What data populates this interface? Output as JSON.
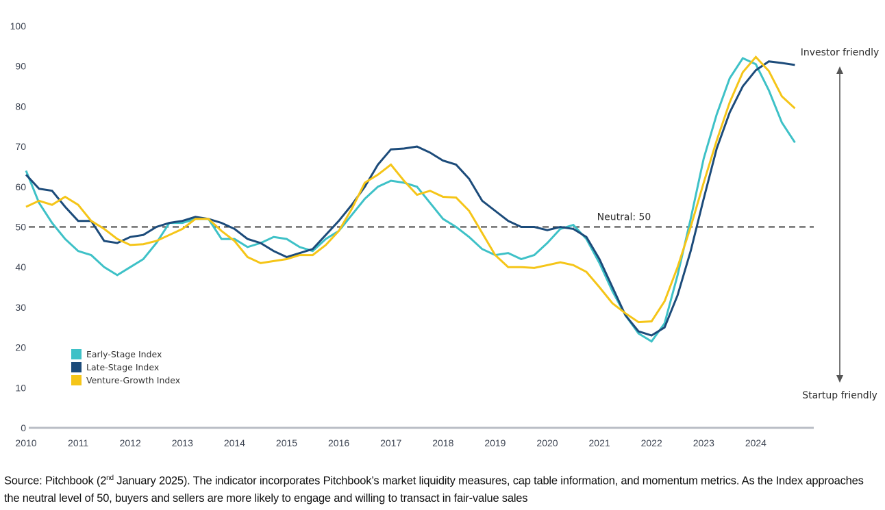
{
  "chart_data": {
    "type": "line",
    "title": "",
    "xlabel": "",
    "ylabel": "",
    "ylim": [
      0,
      100
    ],
    "yticks": [
      0,
      10,
      20,
      30,
      40,
      50,
      60,
      70,
      80,
      90,
      100
    ],
    "xlim": [
      2010,
      2025
    ],
    "xticks": [
      2010,
      2011,
      2012,
      2013,
      2014,
      2015,
      2016,
      2017,
      2018,
      2019,
      2020,
      2021,
      2022,
      2023,
      2024
    ],
    "x_frequency": "quarterly",
    "x_start": 2010,
    "grid": false,
    "legend_placement": "bottom-left",
    "series": [
      {
        "name": "Early-Stage Index",
        "color": "#3ec1c7",
        "values": [
          64,
          56,
          51,
          47,
          44,
          43,
          40,
          38,
          40,
          42,
          46,
          51,
          51,
          52,
          52,
          47,
          47,
          45,
          46,
          47.5,
          47,
          45,
          44,
          47,
          49,
          53,
          57,
          60,
          61.5,
          61,
          60,
          56,
          52,
          50,
          47.5,
          44.5,
          43,
          43.5,
          42,
          43,
          46,
          49.5,
          50.5,
          47,
          41,
          34,
          28,
          23.5,
          21.5,
          26,
          38,
          52,
          67,
          78,
          87,
          92,
          90.5,
          84,
          76,
          71
        ]
      },
      {
        "name": "Late-Stage Index",
        "color": "#1c4b7a",
        "values": [
          63,
          59.5,
          59,
          55,
          51.5,
          51.5,
          46.5,
          46,
          47.5,
          48,
          50,
          51,
          51.5,
          52.5,
          52,
          51,
          49.5,
          47,
          46,
          44,
          42.5,
          43.5,
          44.5,
          48,
          51.5,
          55.5,
          60,
          65.5,
          69.3,
          69.5,
          70,
          68.5,
          66.5,
          65.5,
          62,
          56.5,
          54,
          51.5,
          50,
          50,
          49.2,
          50,
          49.5,
          47.5,
          42,
          35,
          28,
          24,
          23,
          25,
          33,
          44,
          57,
          69.5,
          78.5,
          85,
          89,
          91.2,
          90.8,
          90.3
        ]
      },
      {
        "name": "Venture-Growth Index",
        "color": "#f5c518",
        "values": [
          55,
          56.5,
          55.5,
          57.5,
          55.5,
          51.5,
          49.5,
          47,
          45.5,
          45.7,
          46.5,
          48,
          49.5,
          52,
          52,
          49,
          46.5,
          42.5,
          41,
          41.5,
          42,
          43,
          43,
          45.5,
          49,
          54.5,
          61,
          63,
          65.5,
          61.5,
          58,
          59,
          57.5,
          57.3,
          54,
          48.5,
          43,
          40,
          40,
          39.8,
          40.5,
          41.2,
          40.5,
          38.8,
          35,
          31,
          28.5,
          26.3,
          26.5,
          31.5,
          40,
          50,
          61,
          71.5,
          81,
          88.5,
          92.3,
          88.8,
          82.5,
          79.5
        ]
      }
    ],
    "reference_line": {
      "value": 50,
      "label": "Neutral: 50",
      "style": "dashed",
      "color": "#444444"
    },
    "annotations": {
      "top": "Investor friendly",
      "bottom": "Startup friendly"
    }
  },
  "caption": {
    "before_sup": "Source: Pitchbook (2",
    "sup": "nd",
    "after_sup": " January 2025). The indicator incorporates Pitchbook’s market liquidity measures, cap table information, and momentum metrics. As the Index approaches the neutral level of 50, buyers and sellers are more likely to engage and willing to transact in fair-value sales"
  }
}
